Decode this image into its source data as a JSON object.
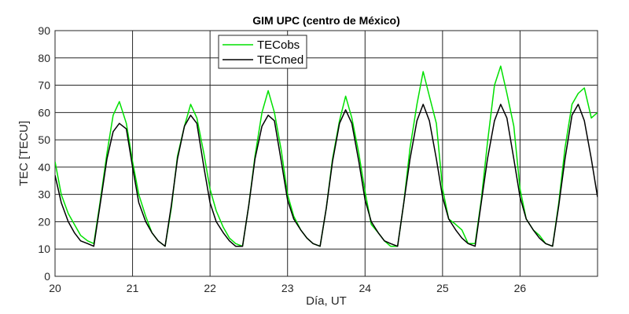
{
  "chart_data": {
    "type": "line",
    "title": "GIM UPC (centro de México)",
    "xlabel": "Día, UT",
    "ylabel": "TEC [TECU]",
    "xlim": [
      20,
      27
    ],
    "ylim": [
      0,
      90
    ],
    "xticks": [
      20,
      21,
      22,
      23,
      24,
      25,
      26
    ],
    "yticks": [
      0,
      10,
      20,
      30,
      40,
      50,
      60,
      70,
      80,
      90
    ],
    "grid": true,
    "legend_position": "top-center",
    "series": [
      {
        "name": "TECobs",
        "color": "#00e000",
        "x": [
          20.0,
          20.08,
          20.17,
          20.25,
          20.33,
          20.42,
          20.5,
          20.58,
          20.67,
          20.75,
          20.83,
          20.92,
          21.0,
          21.08,
          21.17,
          21.25,
          21.33,
          21.42,
          21.5,
          21.58,
          21.67,
          21.75,
          21.83,
          21.92,
          22.0,
          22.08,
          22.17,
          22.25,
          22.33,
          22.42,
          22.5,
          22.58,
          22.67,
          22.75,
          22.83,
          22.92,
          23.0,
          23.08,
          23.17,
          23.25,
          23.33,
          23.42,
          23.5,
          23.58,
          23.67,
          23.75,
          23.83,
          23.92,
          24.0,
          24.08,
          24.17,
          24.25,
          24.33,
          24.42,
          24.5,
          24.58,
          24.67,
          24.75,
          24.83,
          24.92,
          25.0,
          25.08,
          25.17,
          25.25,
          25.33,
          25.42,
          25.5,
          25.58,
          25.67,
          25.75,
          25.83,
          25.92,
          26.0,
          26.08,
          26.17,
          26.25,
          26.33,
          26.42,
          26.5,
          26.58,
          26.67,
          26.75,
          26.83,
          26.92,
          27.0
        ],
        "values": [
          42,
          30,
          23,
          19,
          15,
          13,
          12,
          27,
          45,
          59,
          64,
          56,
          42,
          30,
          22,
          16,
          13,
          11,
          25,
          44,
          55,
          63,
          58,
          45,
          32,
          24,
          18,
          14,
          12,
          11,
          26,
          44,
          60,
          68,
          60,
          46,
          30,
          22,
          17,
          14,
          12,
          11,
          25,
          43,
          57,
          66,
          58,
          45,
          31,
          19,
          16,
          13,
          11,
          11,
          27,
          47,
          63,
          75,
          66,
          56,
          32,
          21,
          19,
          17,
          12,
          12,
          28,
          49,
          70,
          77,
          67,
          55,
          32,
          21,
          17,
          15,
          12,
          11,
          27,
          47,
          63,
          67,
          69,
          58,
          60
        ]
      },
      {
        "name": "TECmed",
        "color": "#000000",
        "x": [
          20.0,
          20.08,
          20.17,
          20.25,
          20.33,
          20.42,
          20.5,
          20.58,
          20.67,
          20.75,
          20.83,
          20.92,
          21.0,
          21.08,
          21.17,
          21.25,
          21.33,
          21.42,
          21.5,
          21.58,
          21.67,
          21.75,
          21.83,
          21.92,
          22.0,
          22.08,
          22.17,
          22.25,
          22.33,
          22.42,
          22.5,
          22.58,
          22.67,
          22.75,
          22.83,
          22.92,
          23.0,
          23.08,
          23.17,
          23.25,
          23.33,
          23.42,
          23.5,
          23.58,
          23.67,
          23.75,
          23.83,
          23.92,
          24.0,
          24.08,
          24.17,
          24.25,
          24.33,
          24.42,
          24.5,
          24.58,
          24.67,
          24.75,
          24.83,
          24.92,
          25.0,
          25.08,
          25.17,
          25.25,
          25.33,
          25.42,
          25.5,
          25.58,
          25.67,
          25.75,
          25.83,
          25.92,
          26.0,
          26.08,
          26.17,
          26.25,
          26.33,
          26.42,
          26.5,
          26.58,
          26.67,
          26.75,
          26.83,
          26.92,
          27.0
        ],
        "values": [
          37,
          27,
          20,
          16,
          13,
          12,
          11,
          26,
          43,
          53,
          56,
          54,
          40,
          27,
          20,
          16,
          13,
          11,
          26,
          43,
          55,
          59,
          56,
          40,
          27,
          20,
          16,
          13,
          11,
          11,
          26,
          43,
          55,
          59,
          57,
          42,
          28,
          21,
          17,
          14,
          12,
          11,
          25,
          42,
          56,
          61,
          56,
          42,
          28,
          20,
          16,
          13,
          12,
          11,
          27,
          43,
          57,
          63,
          57,
          43,
          29,
          21,
          17,
          14,
          12,
          11,
          27,
          43,
          57,
          63,
          58,
          43,
          29,
          21,
          17,
          14,
          12,
          11,
          26,
          43,
          59,
          63,
          57,
          43,
          29
        ]
      }
    ]
  }
}
